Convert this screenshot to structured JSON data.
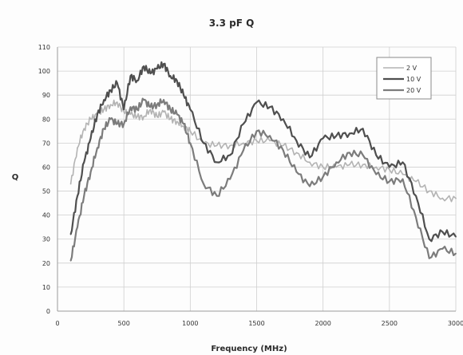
{
  "chart_data": {
    "type": "line",
    "title": "3.3 pF Q",
    "xlabel": "Frequency (MHz)",
    "ylabel": "Q",
    "xlim": [
      0,
      3000
    ],
    "ylim": [
      0,
      110
    ],
    "xticks": [
      0,
      500,
      1000,
      1500,
      2000,
      2500,
      3000
    ],
    "yticks": [
      0,
      10,
      20,
      30,
      40,
      50,
      60,
      70,
      80,
      90,
      100,
      110
    ],
    "xtick_labels": [
      "0",
      "500",
      "1000",
      "1500",
      "2000",
      "2500",
      "3000"
    ],
    "ytick_labels": [
      "0",
      "10",
      "20",
      "30",
      "40",
      "50",
      "60",
      "70",
      "80",
      "90",
      "100",
      "110"
    ],
    "grid": true,
    "legend_position": "top-right",
    "series": [
      {
        "name": "2 V",
        "color": "#b3b3b3",
        "x": [
          100,
          150,
          200,
          250,
          300,
          350,
          400,
          450,
          500,
          550,
          600,
          650,
          700,
          750,
          800,
          850,
          900,
          950,
          1000,
          1100,
          1200,
          1300,
          1400,
          1500,
          1600,
          1700,
          1800,
          1900,
          2000,
          2100,
          2200,
          2300,
          2400,
          2500,
          2600,
          2700,
          2800,
          2900,
          3000
        ],
        "values": [
          53,
          68,
          76,
          80,
          82,
          84,
          86,
          87,
          83,
          82,
          81,
          81,
          84,
          81,
          83,
          80,
          79,
          77,
          75,
          70,
          69,
          69,
          70,
          71,
          71,
          69,
          66,
          62,
          60,
          60,
          61,
          61,
          60,
          59,
          57,
          54,
          50,
          47,
          47
        ]
      },
      {
        "name": "10 V",
        "color": "#4f4f4f",
        "x": [
          100,
          150,
          200,
          250,
          300,
          350,
          400,
          450,
          500,
          550,
          600,
          650,
          700,
          750,
          800,
          850,
          900,
          950,
          1000,
          1100,
          1200,
          1300,
          1400,
          1500,
          1600,
          1700,
          1800,
          1900,
          2000,
          2100,
          2200,
          2300,
          2400,
          2500,
          2600,
          2700,
          2800,
          2900,
          3000
        ],
        "values": [
          32,
          48,
          62,
          72,
          82,
          88,
          92,
          95,
          84,
          98,
          96,
          102,
          99,
          101,
          103,
          98,
          96,
          90,
          84,
          70,
          62,
          65,
          78,
          87,
          85,
          80,
          71,
          64,
          72,
          73,
          74,
          76,
          65,
          60,
          62,
          48,
          30,
          33,
          31
        ]
      },
      {
        "name": "20 V",
        "color": "#7c7c7c",
        "x": [
          100,
          150,
          200,
          250,
          300,
          350,
          400,
          450,
          500,
          550,
          600,
          650,
          700,
          750,
          800,
          850,
          900,
          950,
          1000,
          1100,
          1200,
          1300,
          1400,
          1500,
          1600,
          1700,
          1800,
          1900,
          2000,
          2100,
          2200,
          2300,
          2400,
          2500,
          2600,
          2700,
          2800,
          2900,
          3000
        ],
        "values": [
          21,
          35,
          48,
          58,
          68,
          76,
          80,
          78,
          78,
          85,
          84,
          88,
          85,
          86,
          88,
          84,
          82,
          78,
          70,
          53,
          48,
          55,
          67,
          75,
          73,
          67,
          58,
          52,
          56,
          62,
          66,
          65,
          57,
          54,
          55,
          39,
          22,
          26,
          24
        ]
      }
    ]
  }
}
